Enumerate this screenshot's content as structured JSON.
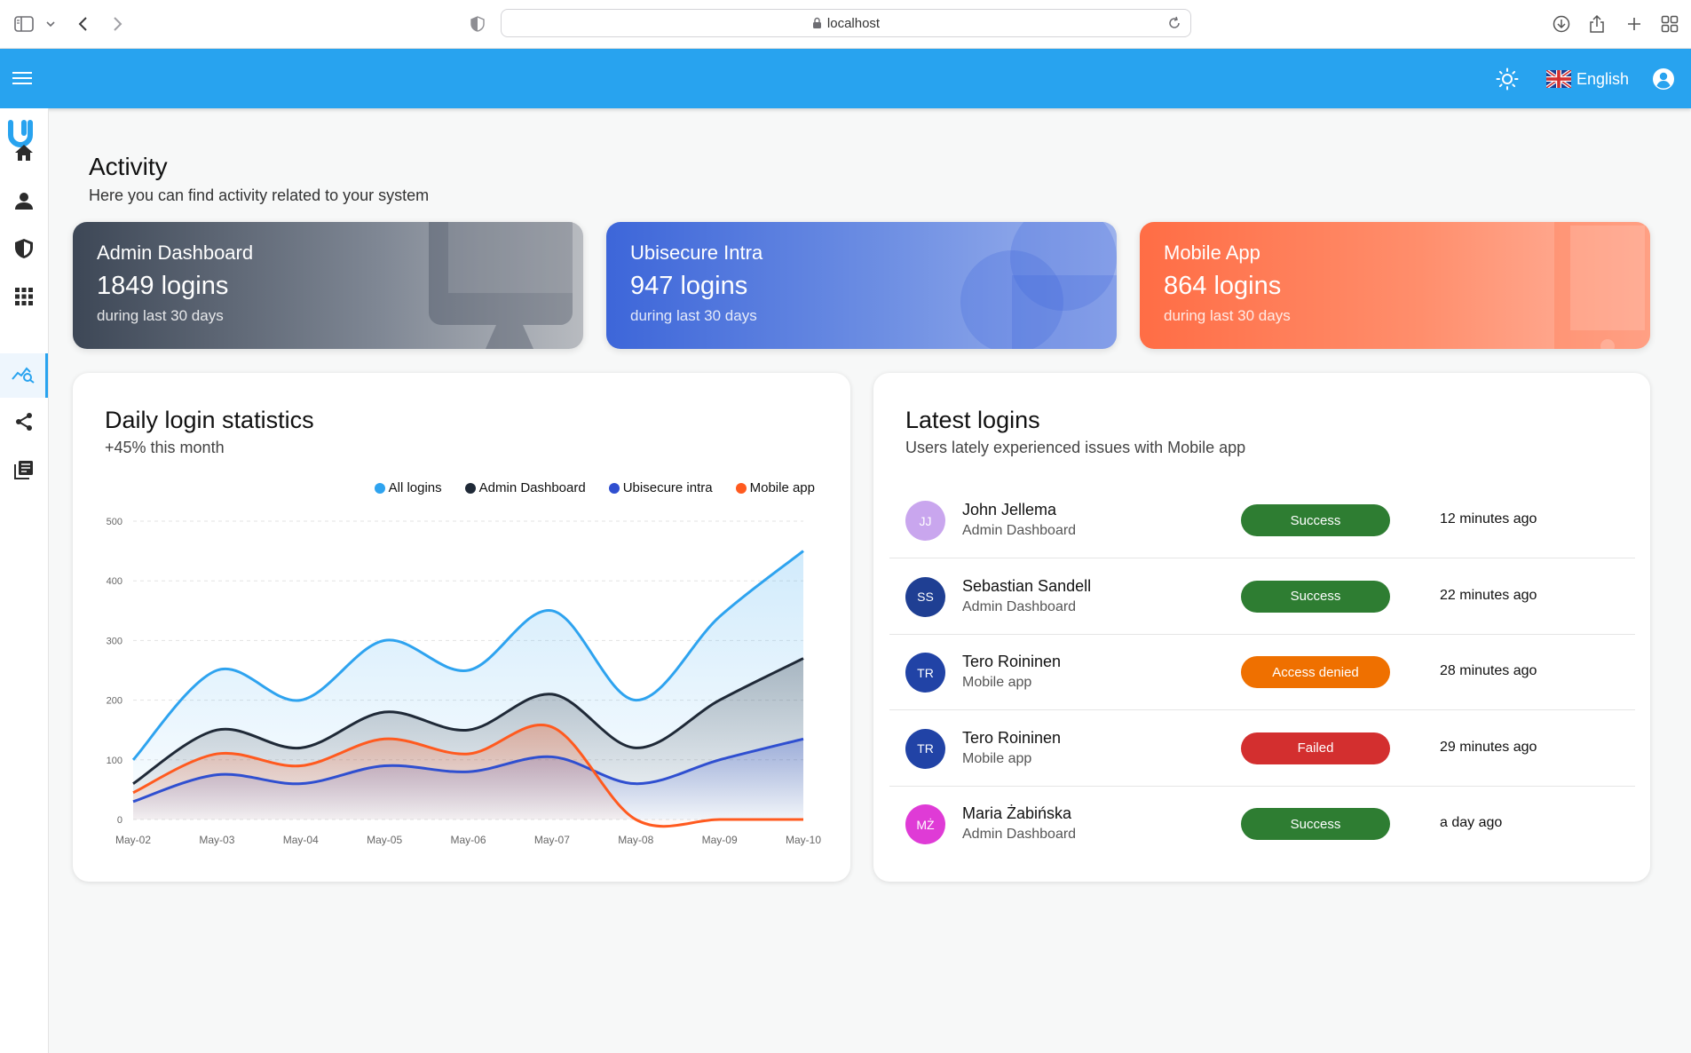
{
  "browser": {
    "url": "localhost"
  },
  "header": {
    "language": "English",
    "brand_color": "#28a3ef"
  },
  "sidebar": {
    "items": [
      {
        "name": "home-icon",
        "active": false
      },
      {
        "name": "person-icon",
        "active": false
      },
      {
        "name": "shield-icon",
        "active": false
      },
      {
        "name": "apps-grid-icon",
        "active": false
      },
      {
        "name": "activity-analytics-icon",
        "active": true
      },
      {
        "name": "share-icon",
        "active": false
      },
      {
        "name": "library-books-icon",
        "active": false
      }
    ]
  },
  "page": {
    "title": "Activity",
    "subtitle": "Here you can find activity related to your system"
  },
  "cards": [
    {
      "title": "Admin Dashboard",
      "value": "1849 logins",
      "sub": "during last 30 days"
    },
    {
      "title": "Ubisecure Intra",
      "value": "947 logins",
      "sub": "during last 30 days"
    },
    {
      "title": "Mobile App",
      "value": "864 logins",
      "sub": "during last 30 days"
    }
  ],
  "chart_panel": {
    "title": "Daily login statistics",
    "subtitle": "+45% this month"
  },
  "chart_data": {
    "type": "area",
    "categories": [
      "May-02",
      "May-03",
      "May-04",
      "May-05",
      "May-06",
      "May-07",
      "May-08",
      "May-09",
      "May-10"
    ],
    "ylim": [
      0,
      500
    ],
    "yticks": [
      "0",
      "100",
      "200",
      "300",
      "400",
      "500"
    ],
    "grid": true,
    "legend_position": "top-right",
    "series": [
      {
        "name": "All logins",
        "color": "#2ea3ef",
        "values": [
          100,
          250,
          200,
          300,
          250,
          350,
          200,
          340,
          450
        ]
      },
      {
        "name": "Admin Dashboard",
        "color": "#1f2937",
        "values": [
          60,
          150,
          120,
          180,
          150,
          210,
          120,
          200,
          270
        ]
      },
      {
        "name": "Ubisecure intra",
        "color": "#2f4fd0",
        "values": [
          30,
          75,
          60,
          90,
          80,
          105,
          60,
          100,
          135
        ]
      },
      {
        "name": "Mobile app",
        "color": "#ff5a1f",
        "values": [
          45,
          110,
          90,
          135,
          110,
          155,
          0,
          0,
          0
        ]
      }
    ]
  },
  "logins_panel": {
    "title": "Latest logins",
    "subtitle": "Users lately experienced issues with Mobile app",
    "rows": [
      {
        "initials": "JJ",
        "avatar_color": "#c9a6ee",
        "name": "John Jellema",
        "app": "Admin Dashboard",
        "status": "Success",
        "status_color": "#2e7d32",
        "time": "12 minutes ago"
      },
      {
        "initials": "SS",
        "avatar_color": "#1f3f93",
        "name": "Sebastian Sandell",
        "app": "Admin Dashboard",
        "status": "Success",
        "status_color": "#2e7d32",
        "time": "22 minutes ago"
      },
      {
        "initials": "TR",
        "avatar_color": "#2143a6",
        "name": "Tero Roininen",
        "app": "Mobile app",
        "status": "Access denied",
        "status_color": "#ef7000",
        "time": "28 minutes ago"
      },
      {
        "initials": "TR",
        "avatar_color": "#2143a6",
        "name": "Tero Roininen",
        "app": "Mobile app",
        "status": "Failed",
        "status_color": "#d32f2f",
        "time": "29 minutes ago"
      },
      {
        "initials": "MŻ",
        "avatar_color": "#df3bd6",
        "name": "Maria Żabińska",
        "app": "Admin Dashboard",
        "status": "Success",
        "status_color": "#2e7d32",
        "time": "a day ago"
      }
    ]
  }
}
